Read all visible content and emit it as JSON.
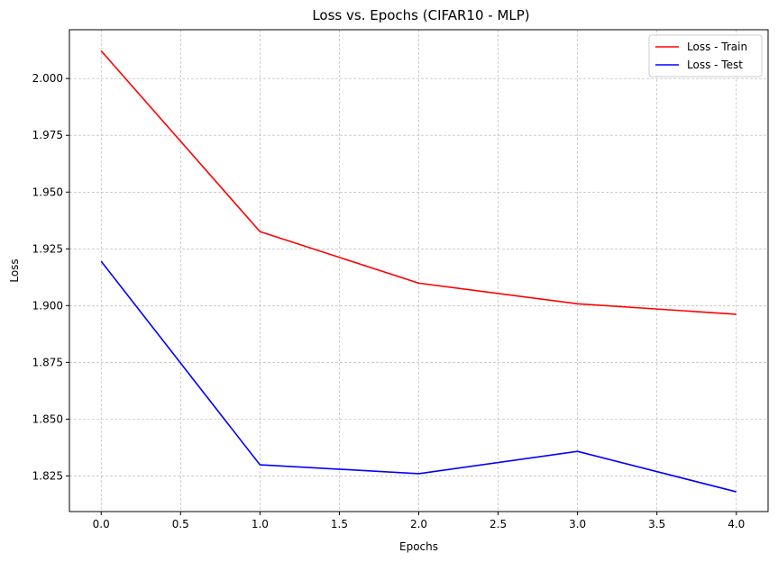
{
  "chart_data": {
    "type": "line",
    "title": "Loss vs. Epochs (CIFAR10 - MLP)",
    "xlabel": "Epochs",
    "ylabel": "Loss",
    "x": [
      0,
      1,
      2,
      3,
      4
    ],
    "xlim": [
      -0.2,
      4.2
    ],
    "ylim": [
      1.8093,
      2.0215
    ],
    "xticks": [
      0.0,
      0.5,
      1.0,
      1.5,
      2.0,
      2.5,
      3.0,
      3.5,
      4.0
    ],
    "xtick_labels": [
      "0.0",
      "0.5",
      "1.0",
      "1.5",
      "2.0",
      "2.5",
      "3.0",
      "3.5",
      "4.0"
    ],
    "yticks": [
      1.825,
      1.85,
      1.875,
      1.9,
      1.925,
      1.95,
      1.975,
      2.0
    ],
    "ytick_labels": [
      "1.825",
      "1.850",
      "1.875",
      "1.900",
      "1.925",
      "1.950",
      "1.975",
      "2.000"
    ],
    "grid": true,
    "legend_position": "top-right",
    "series": [
      {
        "name": "Loss - Train",
        "color": "#ff0000",
        "values": [
          2.0122,
          1.9326,
          1.9099,
          1.9008,
          1.8962
        ]
      },
      {
        "name": "Loss - Test",
        "color": "#0000ff",
        "values": [
          1.9195,
          1.8299,
          1.826,
          1.8358,
          1.818
        ]
      }
    ]
  }
}
